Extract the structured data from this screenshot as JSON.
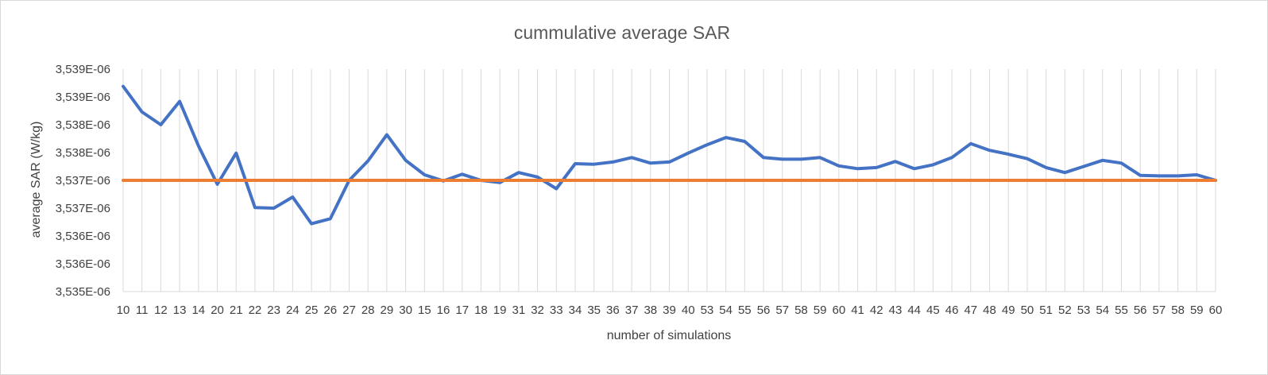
{
  "chart_data": {
    "type": "line",
    "title": "cummulative average SAR",
    "xlabel": "number of simulations",
    "ylabel": "average SAR (W/kg)",
    "categories": [
      "10",
      "11",
      "12",
      "13",
      "14",
      "20",
      "21",
      "22",
      "23",
      "24",
      "25",
      "26",
      "27",
      "28",
      "29",
      "30",
      "15",
      "16",
      "17",
      "18",
      "19",
      "31",
      "32",
      "33",
      "34",
      "35",
      "36",
      "37",
      "38",
      "39",
      "40",
      "53",
      "54",
      "55",
      "56",
      "57",
      "58",
      "59",
      "60",
      "41",
      "42",
      "43",
      "44",
      "45",
      "46",
      "47",
      "48",
      "49",
      "50",
      "51",
      "52",
      "53",
      "54",
      "55",
      "56",
      "57",
      "58",
      "59",
      "60"
    ],
    "y_tick_labels": [
      "3,539E-06",
      "3,539E-06",
      "3,538E-06",
      "3,538E-06",
      "3,537E-06",
      "3,537E-06",
      "3,536E-06",
      "3,536E-06",
      "3,535E-06"
    ],
    "ylim": [
      3.535e-06,
      3.539e-06
    ],
    "grid": "vertical",
    "series": [
      {
        "values": [
          3.53869e-06,
          3.53823e-06,
          3.538e-06,
          3.53842e-06,
          3.53762e-06,
          3.53693e-06,
          3.53749e-06,
          3.53651e-06,
          3.5365e-06,
          3.5367e-06,
          3.53622e-06,
          3.53631e-06,
          3.537e-06,
          3.53735e-06,
          3.53782e-06,
          3.53736e-06,
          3.5371e-06,
          3.53699e-06,
          3.53711e-06,
          3.537e-06,
          3.53696e-06,
          3.53714e-06,
          3.53706e-06,
          3.53685e-06,
          3.5373e-06,
          3.53729e-06,
          3.53733e-06,
          3.53741e-06,
          3.53731e-06,
          3.53733e-06,
          3.53749e-06,
          3.53764e-06,
          3.53777e-06,
          3.5377e-06,
          3.53741e-06,
          3.53738e-06,
          3.53738e-06,
          3.53741e-06,
          3.53726e-06,
          3.53721e-06,
          3.53723e-06,
          3.53734e-06,
          3.53721e-06,
          3.53728e-06,
          3.53741e-06,
          3.53766e-06,
          3.53754e-06,
          3.53747e-06,
          3.53739e-06,
          3.53723e-06,
          3.53714e-06,
          3.53725e-06,
          3.53736e-06,
          3.53731e-06,
          3.53709e-06,
          3.53708e-06,
          3.53708e-06,
          3.5371e-06,
          3.537e-06
        ],
        "color": "#4472C4"
      },
      {
        "values": [
          3.537e-06,
          3.537e-06,
          3.537e-06,
          3.537e-06,
          3.537e-06,
          3.537e-06,
          3.537e-06,
          3.537e-06,
          3.537e-06,
          3.537e-06,
          3.537e-06,
          3.537e-06,
          3.537e-06,
          3.537e-06,
          3.537e-06,
          3.537e-06,
          3.537e-06,
          3.537e-06,
          3.537e-06,
          3.537e-06,
          3.537e-06,
          3.537e-06,
          3.537e-06,
          3.537e-06,
          3.537e-06,
          3.537e-06,
          3.537e-06,
          3.537e-06,
          3.537e-06,
          3.537e-06,
          3.537e-06,
          3.537e-06,
          3.537e-06,
          3.537e-06,
          3.537e-06,
          3.537e-06,
          3.537e-06,
          3.537e-06,
          3.537e-06,
          3.537e-06,
          3.537e-06,
          3.537e-06,
          3.537e-06,
          3.537e-06,
          3.537e-06,
          3.537e-06,
          3.537e-06,
          3.537e-06,
          3.537e-06,
          3.537e-06,
          3.537e-06,
          3.537e-06,
          3.537e-06,
          3.537e-06,
          3.537e-06,
          3.537e-06,
          3.537e-06,
          3.537e-06,
          3.537e-06
        ],
        "color": "#ED7D31"
      }
    ]
  }
}
